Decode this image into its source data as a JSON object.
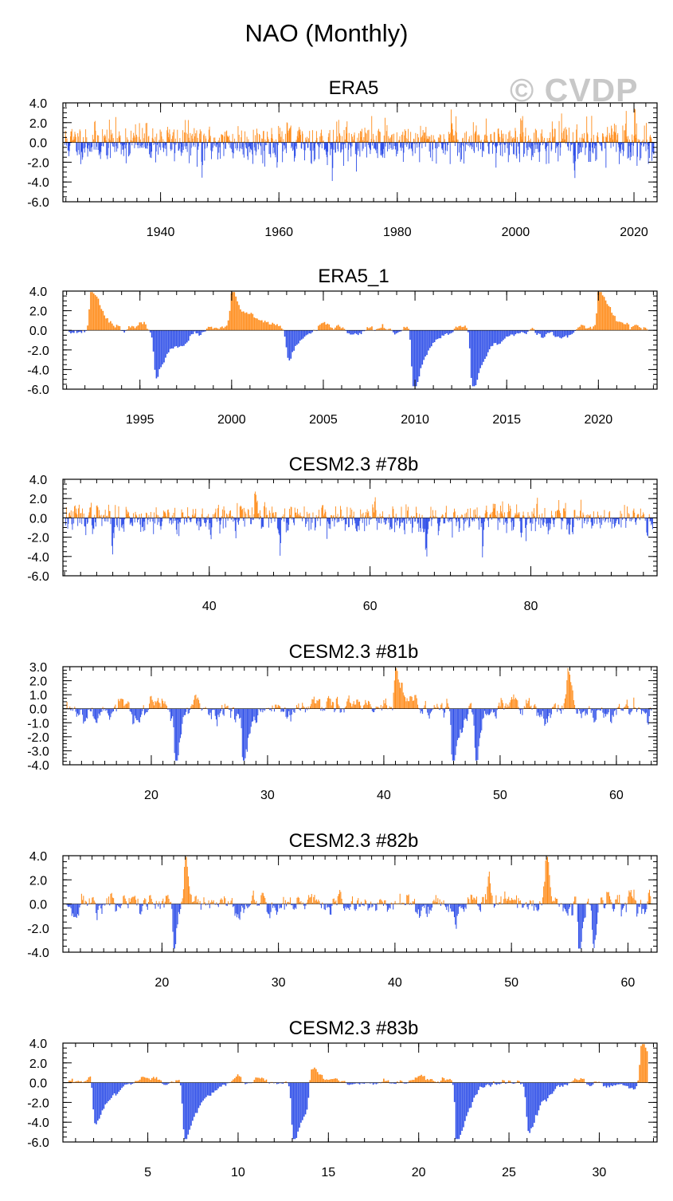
{
  "main_title": "NAO (Monthly)",
  "watermark": "© CVDP",
  "colors": {
    "positive": "#ff8c1a",
    "negative": "#2f4fe8",
    "axis": "#000000"
  },
  "chart_data": [
    {
      "type": "bar",
      "title": "ERA5",
      "xlim": [
        1923.5,
        2023.9
      ],
      "ylim": [
        -6,
        4
      ],
      "yticks": [
        4,
        2,
        0,
        -2,
        -4,
        -6
      ],
      "ytick_labels": [
        "4.0",
        "2.0",
        "0.0",
        "-2.0",
        "-4.0",
        "-6.0"
      ],
      "yminor": 0.5,
      "xticks": [
        1940,
        1960,
        1980,
        2000,
        2020
      ],
      "xtick_labels": [
        "1940",
        "1960",
        "1980",
        "2000",
        "2020"
      ],
      "xminor": 2,
      "seed": 11,
      "vol": 0.95,
      "rho": 0.15,
      "mean": 0.0,
      "events": [
        [
          1947.0,
          -3.2
        ],
        [
          1962.6,
          -2.2
        ],
        [
          1969.0,
          -2.6
        ],
        [
          1989.2,
          2.6
        ],
        [
          1995.0,
          2.0
        ],
        [
          2010.0,
          -3.0
        ],
        [
          2012.0,
          2.0
        ],
        [
          2020.1,
          2.7
        ],
        [
          2021.0,
          -2.0
        ]
      ],
      "xlabel": "",
      "ylabel": ""
    },
    {
      "type": "bar",
      "title": "ERA5_1",
      "xlim": [
        1990.8,
        2023.2
      ],
      "ylim": [
        -6,
        4
      ],
      "yticks": [
        4,
        2,
        0,
        -2,
        -4,
        -6
      ],
      "ytick_labels": [
        "4.0",
        "2.0",
        "0.0",
        "-2.0",
        "-4.0",
        "-6.0"
      ],
      "yminor": 0.5,
      "xticks": [
        1995,
        2000,
        2005,
        2010,
        2015,
        2020
      ],
      "xtick_labels": [
        "1995",
        "2000",
        "2005",
        "2010",
        "2015",
        "2020"
      ],
      "xminor": 1,
      "seed": 23,
      "vol": 0.35,
      "rho": 0.9,
      "mean": 0.0,
      "events": [
        [
          1992.3,
          2.2
        ],
        [
          1995.8,
          -2.2
        ],
        [
          2000.0,
          1.8
        ],
        [
          2003.0,
          -1.3
        ],
        [
          2009.9,
          -4.0
        ],
        [
          2013.1,
          -3.5
        ],
        [
          2020.0,
          2.4
        ],
        [
          2022.9,
          -2.5
        ]
      ],
      "xlabel": "",
      "ylabel": ""
    },
    {
      "type": "bar",
      "title": "CESM2.3 #78b",
      "xlim": [
        21.8,
        95.7
      ],
      "ylim": [
        -6,
        4
      ],
      "yticks": [
        4,
        2,
        0,
        -2,
        -4,
        -6
      ],
      "ytick_labels": [
        "4.0",
        "2.0",
        "0.0",
        "-2.0",
        "-4.0",
        "-6.0"
      ],
      "yminor": 0.5,
      "xticks": [
        40,
        60,
        80
      ],
      "xtick_labels": [
        "40",
        "60",
        "80"
      ],
      "xminor": 2,
      "seed": 37,
      "vol": 0.75,
      "rho": 0.3,
      "mean": 0.0,
      "events": [
        [
          28.0,
          -2.8
        ],
        [
          40.2,
          -2.4
        ],
        [
          45.8,
          2.5
        ],
        [
          48.8,
          -3.4
        ],
        [
          67.0,
          -3.0
        ],
        [
          74.0,
          -2.6
        ]
      ],
      "xlabel": "",
      "ylabel": ""
    },
    {
      "type": "bar",
      "title": "CESM2.3 #81b",
      "xlim": [
        12.4,
        63.5
      ],
      "ylim": [
        -4,
        3
      ],
      "yticks": [
        3,
        2,
        1,
        0,
        -1,
        -2,
        -3,
        -4
      ],
      "ytick_labels": [
        "3.0",
        "2.0",
        "1.0",
        "0.0",
        "-1.0",
        "-2.0",
        "-3.0",
        "-4.0"
      ],
      "yminor": 0.25,
      "xticks": [
        20,
        30,
        40,
        50,
        60
      ],
      "xtick_labels": [
        "20",
        "30",
        "40",
        "50",
        "60"
      ],
      "xminor": 1,
      "seed": 53,
      "vol": 0.5,
      "rho": 0.8,
      "mean": 0.0,
      "events": [
        [
          12.5,
          2.6
        ],
        [
          22.1,
          -3.6
        ],
        [
          27.9,
          -3.1
        ],
        [
          41.0,
          2.4
        ],
        [
          45.9,
          -3.2
        ],
        [
          47.9,
          -3.3
        ],
        [
          55.8,
          1.9
        ]
      ],
      "xlabel": "",
      "ylabel": ""
    },
    {
      "type": "bar",
      "title": "CESM2.3 #82b",
      "xlim": [
        11.5,
        62.5
      ],
      "ylim": [
        -4,
        4
      ],
      "yticks": [
        4,
        2,
        0,
        -2,
        -4
      ],
      "ytick_labels": [
        "4.0",
        "2.0",
        "0.0",
        "-2.0",
        "-4.0"
      ],
      "yminor": 0.5,
      "xticks": [
        20,
        30,
        40,
        50,
        60
      ],
      "xtick_labels": [
        "20",
        "30",
        "40",
        "50",
        "60"
      ],
      "xminor": 1,
      "seed": 71,
      "vol": 0.55,
      "rho": 0.7,
      "mean": 0.0,
      "events": [
        [
          21.0,
          -3.0
        ],
        [
          22.0,
          2.2
        ],
        [
          48.0,
          2.0
        ],
        [
          53.0,
          3.0
        ],
        [
          55.8,
          -3.3
        ],
        [
          57.0,
          -2.4
        ]
      ],
      "xlabel": "",
      "ylabel": ""
    },
    {
      "type": "bar",
      "title": "CESM2.3 #83b",
      "xlim": [
        0.3,
        33.2
      ],
      "ylim": [
        -6,
        4
      ],
      "yticks": [
        4,
        2,
        0,
        -2,
        -4,
        -6
      ],
      "ytick_labels": [
        "4.0",
        "2.0",
        "0.0",
        "-2.0",
        "-4.0",
        "-6.0"
      ],
      "yminor": 0.5,
      "xticks": [
        5,
        10,
        15,
        20,
        25,
        30
      ],
      "xtick_labels": [
        "5",
        "10",
        "15",
        "20",
        "25",
        "30"
      ],
      "xminor": 1,
      "seed": 97,
      "vol": 0.35,
      "rho": 0.9,
      "mean": 0.0,
      "events": [
        [
          2.0,
          -2.3
        ],
        [
          7.0,
          -3.0
        ],
        [
          13.0,
          -2.7
        ],
        [
          14.0,
          1.6
        ],
        [
          22.1,
          -4.1
        ],
        [
          26.0,
          -2.3
        ],
        [
          32.3,
          2.0
        ]
      ],
      "xlabel": "",
      "ylabel": ""
    }
  ]
}
